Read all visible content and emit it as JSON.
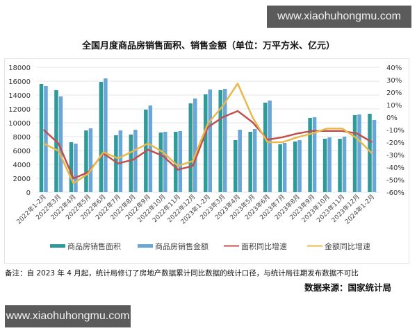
{
  "watermark": {
    "top_text": "www.xiaohuhongmu.com",
    "bottom_text": "www.xiaohuhongmu.com"
  },
  "title": "全国月度商品房销售面积、销售金额（单位：万平方米、亿元）",
  "note": "备注：自 2023 年 4 月起，统计局修订了房地产数据累计同比数据的统计口径，与统计局往期发布数据不可比",
  "source": "数据来源：国家统计局",
  "colors": {
    "area_bar": "#2f9a9a",
    "amount_bar": "#6aa6d6",
    "area_yoy_line": "#c0504d",
    "amount_yoy_line": "#e8b84a",
    "grid": "#e6e6e6"
  },
  "chart_data": {
    "type": "bar+line",
    "title": "全国月度商品房销售面积、销售金额（单位：万平方米、亿元）",
    "categories": [
      "2022年1-2月",
      "2022年3月",
      "2022年4月",
      "2022年5月",
      "2022年6月",
      "2022年7月",
      "2022年8月",
      "2022年9月",
      "2022年10月",
      "2022年11月",
      "2022年12月",
      "2023年1-2月",
      "2023年3月",
      "2023年4月",
      "2023年5月",
      "2023年6月",
      "2023年7月",
      "2023年8月",
      "2023年9月",
      "2023年10月",
      "2023年11月",
      "2023年12月",
      "2024年1-2月"
    ],
    "series": [
      {
        "name": "商品房销售面积",
        "type": "bar",
        "axis": "left",
        "values": [
          15600,
          14700,
          7200,
          8900,
          15900,
          8200,
          8300,
          11900,
          8600,
          8700,
          12800,
          14100,
          14700,
          7500,
          8700,
          12900,
          6900,
          7300,
          10700,
          7700,
          7700,
          11100,
          11300
        ]
      },
      {
        "name": "商品房销售金额",
        "type": "bar",
        "axis": "left",
        "values": [
          15300,
          13800,
          7000,
          9200,
          16400,
          8900,
          9000,
          12500,
          8700,
          8800,
          13500,
          14800,
          14900,
          9000,
          9100,
          13200,
          7100,
          7500,
          10800,
          7900,
          8000,
          11200,
          10400
        ]
      },
      {
        "name": "面积同比增速",
        "type": "line",
        "axis": "right",
        "unit": "%",
        "values": [
          -10,
          -21,
          -49,
          -44,
          -29,
          -37,
          -34,
          -26,
          -31,
          -42,
          -39,
          -8,
          0,
          5,
          -4,
          -18,
          -16,
          -13,
          -11,
          -11,
          -11,
          -13,
          -20
        ]
      },
      {
        "name": "金额同比增速",
        "type": "line",
        "axis": "right",
        "unit": "%",
        "values": [
          -21,
          -27,
          -53,
          -45,
          -28,
          -33,
          -27,
          -21,
          -28,
          -39,
          -35,
          -5,
          9,
          27,
          0,
          -20,
          -20,
          -16,
          -13,
          -9,
          -9,
          -17,
          -29
        ]
      }
    ],
    "left_axis": {
      "ylim": [
        0,
        18000
      ],
      "ticks": [
        "0",
        "2000",
        "4000",
        "6000",
        "8000",
        "10000",
        "12000",
        "14000",
        "16000",
        "18000"
      ]
    },
    "right_axis": {
      "ylim": [
        -60,
        40
      ],
      "ticks": [
        "-60%",
        "-50%",
        "-40%",
        "-30%",
        "-20%",
        "-10%",
        "0%",
        "10%",
        "20%",
        "30%",
        "40%"
      ]
    },
    "grid": true,
    "legend_position": "bottom",
    "xlabel": "",
    "ylabel": ""
  },
  "legend": [
    {
      "label": "商品房销售面积",
      "kind": "bar"
    },
    {
      "label": "商品房销售金额",
      "kind": "bar"
    },
    {
      "label": "面积同比增速",
      "kind": "line"
    },
    {
      "label": "金额同比增速",
      "kind": "line"
    }
  ]
}
